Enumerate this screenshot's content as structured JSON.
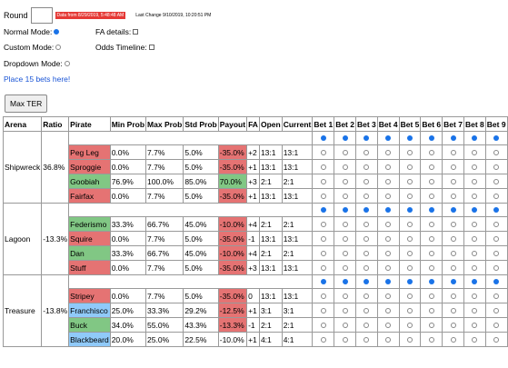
{
  "round": {
    "label": "Round",
    "value": "",
    "status": "Data from 8/29/2019, 5:48:48 AM",
    "last_change": "Last Change 9/10/2019, 10:20:51 PM"
  },
  "options": {
    "normal_mode": "Normal Mode:",
    "fa_details": "FA details:",
    "custom_mode": "Custom Mode:",
    "odds_timeline": "Odds Timeline:",
    "dropdown_mode": "Dropdown Mode:"
  },
  "place_link": "Place 15 bets here!",
  "max_ter": "Max TER",
  "headers": [
    "Arena",
    "Ratio",
    "Pirate",
    "Min Prob",
    "Max Prob",
    "Std Prob",
    "Payout",
    "FA",
    "Open",
    "Current",
    "Bet 1",
    "Bet 2",
    "Bet 3",
    "Bet 4",
    "Bet 5",
    "Bet 6",
    "Bet 7",
    "Bet 8",
    "Bet 9"
  ],
  "arenas": [
    {
      "name": "Shipwreck",
      "ratio": "36.8%",
      "pirates": [
        {
          "name": "Peg Leg",
          "color": "red",
          "min": "0.0%",
          "max": "7.7%",
          "std": "5.0%",
          "payout": "-35.0%",
          "pcolor": "red",
          "fa": "+2",
          "open": "13:1",
          "current": "13:1"
        },
        {
          "name": "Sproggie",
          "color": "red",
          "min": "0.0%",
          "max": "7.7%",
          "std": "5.0%",
          "payout": "-35.0%",
          "pcolor": "red",
          "fa": "+1",
          "open": "13:1",
          "current": "13:1"
        },
        {
          "name": "Goobiah",
          "color": "green",
          "min": "76.9%",
          "max": "100.0%",
          "std": "85.0%",
          "payout": "70.0%",
          "pcolor": "green",
          "fa": "+3",
          "open": "2:1",
          "current": "2:1"
        },
        {
          "name": "Fairfax",
          "color": "red",
          "min": "0.0%",
          "max": "7.7%",
          "std": "5.0%",
          "payout": "-35.0%",
          "pcolor": "red",
          "fa": "+1",
          "open": "13:1",
          "current": "13:1"
        }
      ]
    },
    {
      "name": "Lagoon",
      "ratio": "-13.3%",
      "pirates": [
        {
          "name": "Federismo",
          "color": "green",
          "min": "33.3%",
          "max": "66.7%",
          "std": "45.0%",
          "payout": "-10.0%",
          "pcolor": "red",
          "fa": "+4",
          "open": "2:1",
          "current": "2:1"
        },
        {
          "name": "Squire",
          "color": "red",
          "min": "0.0%",
          "max": "7.7%",
          "std": "5.0%",
          "payout": "-35.0%",
          "pcolor": "red",
          "fa": "-1",
          "open": "13:1",
          "current": "13:1"
        },
        {
          "name": "Dan",
          "color": "green",
          "min": "33.3%",
          "max": "66.7%",
          "std": "45.0%",
          "payout": "-10.0%",
          "pcolor": "red",
          "fa": "+4",
          "open": "2:1",
          "current": "2:1"
        },
        {
          "name": "Stuff",
          "color": "red",
          "min": "0.0%",
          "max": "7.7%",
          "std": "5.0%",
          "payout": "-35.0%",
          "pcolor": "red",
          "fa": "+3",
          "open": "13:1",
          "current": "13:1"
        }
      ]
    },
    {
      "name": "Treasure",
      "ratio": "-13.8%",
      "pirates": [
        {
          "name": "Stripey",
          "color": "red",
          "min": "0.0%",
          "max": "7.7%",
          "std": "5.0%",
          "payout": "-35.0%",
          "pcolor": "red",
          "fa": "0",
          "open": "13:1",
          "current": "13:1"
        },
        {
          "name": "Franchisco",
          "color": "blue",
          "min": "25.0%",
          "max": "33.3%",
          "std": "29.2%",
          "payout": "-12.5%",
          "pcolor": "red",
          "fa": "+1",
          "open": "3:1",
          "current": "3:1"
        },
        {
          "name": "Buck",
          "color": "green",
          "min": "34.0%",
          "max": "55.0%",
          "std": "43.3%",
          "payout": "-13.3%",
          "pcolor": "red",
          "fa": "-1",
          "open": "2:1",
          "current": "2:1"
        },
        {
          "name": "Blackbeard",
          "color": "blue",
          "min": "20.0%",
          "max": "25.0%",
          "std": "22.5%",
          "payout": "-10.0%",
          "pcolor": "none",
          "fa": "+1",
          "open": "4:1",
          "current": "4:1"
        }
      ]
    }
  ]
}
